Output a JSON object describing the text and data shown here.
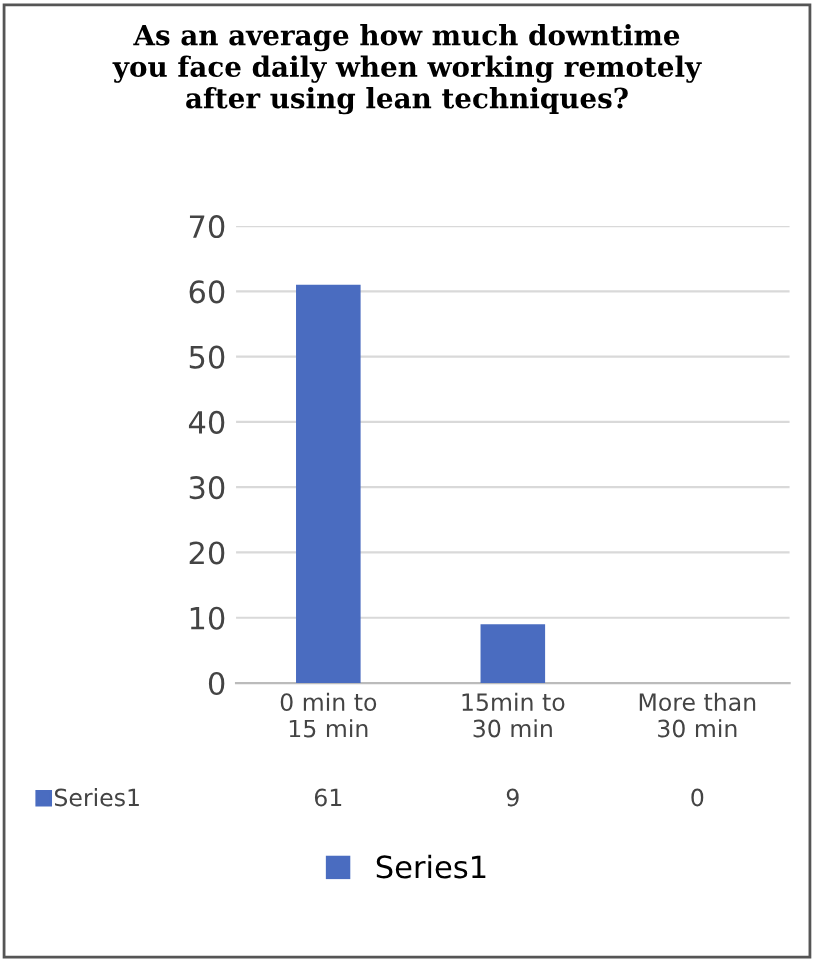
{
  "chart_data": {
    "type": "bar",
    "title": "As an average how much downtime\nyou face daily when working remotely\nafter using lean techniques?",
    "categories": [
      "0 min to\n15 min",
      "15min to\n30 min",
      "More than\n30 min"
    ],
    "series": [
      {
        "name": "Series1",
        "color": "#4a6cc0",
        "values": [
          61,
          9,
          0
        ]
      }
    ],
    "ylim": [
      0,
      70
    ],
    "yticks": [
      0,
      10,
      20,
      30,
      40,
      50,
      60,
      70
    ],
    "grid": "y",
    "legend": "bottom",
    "data_labels": true
  }
}
